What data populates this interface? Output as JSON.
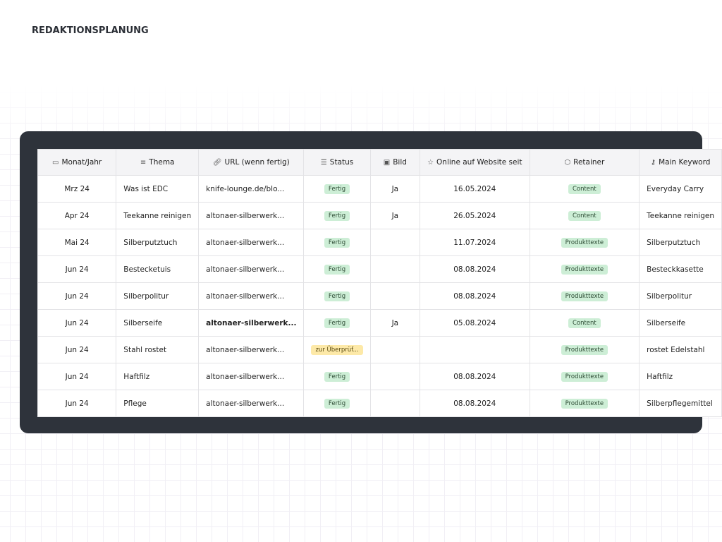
{
  "title": "REDAKTIONSPLANUNG",
  "columns": [
    {
      "label": "Monat/Jahr",
      "icon": "calendar-icon",
      "glyph": "▭"
    },
    {
      "label": "Thema",
      "icon": "text-lines-icon",
      "glyph": "≡"
    },
    {
      "label": "URL (wenn fertig)",
      "icon": "link-icon",
      "glyph": "🔗︎"
    },
    {
      "label": "Status",
      "icon": "list-icon",
      "glyph": "☰"
    },
    {
      "label": "Bild",
      "icon": "image-icon",
      "glyph": "▣"
    },
    {
      "label": "Online auf Website seit",
      "icon": "star-icon",
      "glyph": "☆"
    },
    {
      "label": "Retainer",
      "icon": "cube-icon",
      "glyph": "⬡"
    },
    {
      "label": "Main Keyword",
      "icon": "key-icon",
      "glyph": "⚷"
    }
  ],
  "rows": [
    {
      "monat": "Mrz 24",
      "thema": "Was ist EDC",
      "url": "knife-lounge.de/blo...",
      "status": "Fertig",
      "bild": "Ja",
      "online": "16.05.2024",
      "retainer": "Content",
      "keyword": "Everyday Carry"
    },
    {
      "monat": "Apr 24",
      "thema": "Teekanne reinigen",
      "url": "altonaer-silberwerk...",
      "status": "Fertig",
      "bild": "Ja",
      "online": "26.05.2024",
      "retainer": "Content",
      "keyword": "Teekanne reinigen"
    },
    {
      "monat": "Mai 24",
      "thema": "Silberputztuch",
      "url": "altonaer-silberwerk...",
      "status": "Fertig",
      "bild": "",
      "online": "11.07.2024",
      "retainer": "Produkttexte",
      "keyword": "Silberputztuch"
    },
    {
      "monat": "Jun 24",
      "thema": "Bestecketuis",
      "url": "altonaer-silberwerk...",
      "status": "Fertig",
      "bild": "",
      "online": "08.08.2024",
      "retainer": "Produkttexte",
      "keyword": "Besteckkasette"
    },
    {
      "monat": "Jun 24",
      "thema": "Silberpolitur",
      "url": "altonaer-silberwerk...",
      "status": "Fertig",
      "bild": "",
      "online": "08.08.2024",
      "retainer": "Produkttexte",
      "keyword": "Silberpolitur"
    },
    {
      "monat": "Jun 24",
      "thema": "Silberseife",
      "url": "altonaer-silberwerk...",
      "status": "Fertig",
      "bild": "Ja",
      "online": "05.08.2024",
      "retainer": "Content",
      "keyword": "Silberseife"
    },
    {
      "monat": "Jun 24",
      "thema": "Stahl rostet",
      "url": "altonaer-silberwerk...",
      "status": "zur Überprüf...",
      "bild": "",
      "online": "",
      "retainer": "Produkttexte",
      "keyword": "rostet Edelstahl"
    },
    {
      "monat": "Jun 24",
      "thema": "Haftfilz",
      "url": "altonaer-silberwerk...",
      "status": "Fertig",
      "bild": "",
      "online": "08.08.2024",
      "retainer": "Produkttexte",
      "keyword": "Haftfilz"
    },
    {
      "monat": "Jun 24",
      "thema": "Pflege",
      "url": "altonaer-silberwerk...",
      "status": "Fertig",
      "bild": "",
      "online": "08.08.2024",
      "retainer": "Produkttexte",
      "keyword": "Silberpflegemittel"
    }
  ],
  "colors": {
    "frame": "#2e333b",
    "tag_done": "#cdeed6",
    "tag_review": "#fde9a8"
  }
}
